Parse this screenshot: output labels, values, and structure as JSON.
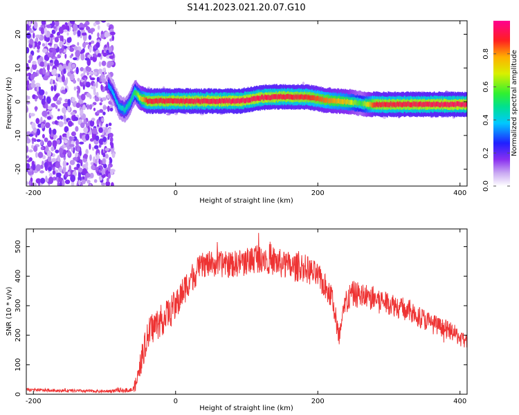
{
  "title": "S141.2023.021.20.07.G10",
  "chart_data": [
    {
      "type": "heatmap",
      "xlabel": "Height of straight line (km)",
      "ylabel": "Frequency (Hz)",
      "xlim": [
        -210,
        410
      ],
      "ylim": [
        -25,
        24
      ],
      "xticks": [
        -200,
        0,
        200,
        400
      ],
      "yticks": [
        20,
        10,
        0,
        -10,
        -20
      ],
      "colorbar": {
        "label": "Normalized spectral amplitude",
        "ticks": [
          "0.0",
          "0.2",
          "0.4",
          "0.6",
          "0.8"
        ],
        "range": [
          0,
          1
        ]
      },
      "noise_region_x": [
        -210,
        -95
      ],
      "ridge": [
        {
          "x": -95,
          "f": 5.0
        },
        {
          "x": -88,
          "f": 2.5
        },
        {
          "x": -80,
          "f": -1.5
        },
        {
          "x": -72,
          "f": -2.5
        },
        {
          "x": -65,
          "f": -0.5
        },
        {
          "x": -58,
          "f": 3.0
        },
        {
          "x": -50,
          "f": 1.0
        },
        {
          "x": -40,
          "f": 0.2
        },
        {
          "x": 0,
          "f": 0.2
        },
        {
          "x": 90,
          "f": 0.2
        },
        {
          "x": 120,
          "f": 1.2
        },
        {
          "x": 150,
          "f": 1.5
        },
        {
          "x": 185,
          "f": 1.4
        },
        {
          "x": 210,
          "f": 0.5
        },
        {
          "x": 240,
          "f": 0.0
        },
        {
          "x": 270,
          "f": -0.8
        },
        {
          "x": 410,
          "f": -0.8
        }
      ],
      "ridge_amplitude": [
        {
          "x": -95,
          "a": 0.35
        },
        {
          "x": -60,
          "a": 0.5
        },
        {
          "x": -40,
          "a": 0.9
        },
        {
          "x": 90,
          "a": 0.95
        },
        {
          "x": 180,
          "a": 0.9
        },
        {
          "x": 240,
          "a": 0.75
        },
        {
          "x": 260,
          "a": 0.55
        },
        {
          "x": 280,
          "a": 0.9
        },
        {
          "x": 410,
          "a": 0.95
        }
      ]
    },
    {
      "type": "line",
      "xlabel": "Height of straight line (km)",
      "ylabel": "SNR (10 * v/v)",
      "xlim": [
        -210,
        410
      ],
      "ylim": [
        0,
        560
      ],
      "xticks": [
        -200,
        0,
        200,
        400
      ],
      "yticks": [
        0,
        100,
        200,
        300,
        400,
        500
      ],
      "color": "#ee3333",
      "x": [
        -210,
        -150,
        -100,
        -60,
        -55,
        -45,
        -35,
        -20,
        0,
        20,
        40,
        60,
        80,
        100,
        120,
        140,
        160,
        180,
        200,
        220,
        230,
        240,
        250,
        270,
        300,
        330,
        360,
        390,
        410
      ],
      "y": [
        15,
        12,
        10,
        15,
        40,
        150,
        220,
        250,
        300,
        390,
        440,
        440,
        440,
        450,
        470,
        450,
        430,
        430,
        400,
        330,
        190,
        320,
        340,
        330,
        310,
        280,
        240,
        210,
        175
      ],
      "noise_amplitude": [
        5,
        5,
        5,
        8,
        30,
        50,
        55,
        55,
        55,
        50,
        45,
        45,
        45,
        50,
        55,
        50,
        50,
        50,
        45,
        45,
        40,
        45,
        45,
        45,
        40,
        40,
        35,
        30,
        30
      ]
    }
  ]
}
